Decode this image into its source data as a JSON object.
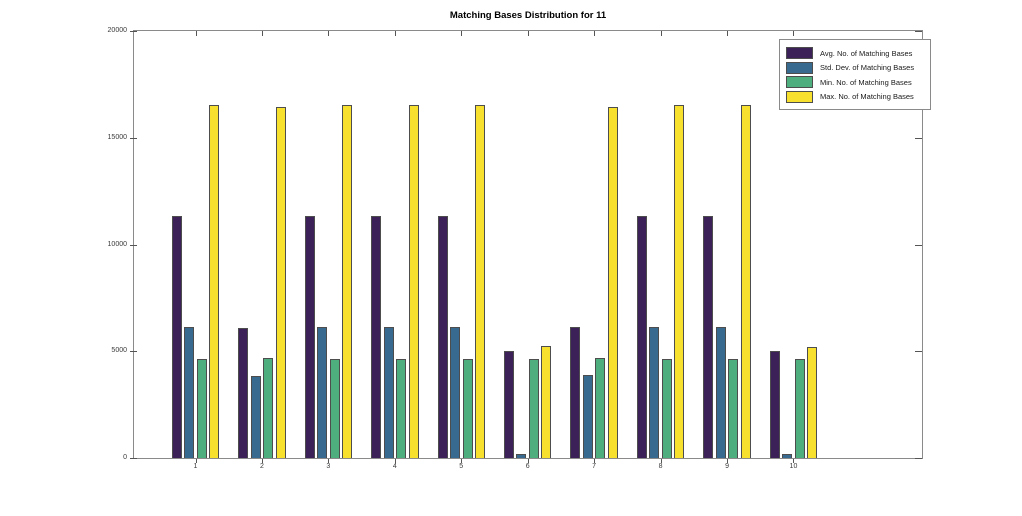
{
  "title": "Matching Bases Distribution for 11",
  "colors": {
    "avg": "#3c2159",
    "std": "#38698e",
    "min": "#4fae7d",
    "max": "#f7e02e",
    "bar_edge": "#4d4d4d",
    "axis": "#8a8a8a",
    "background": "#ffffff"
  },
  "chart_data": {
    "type": "bar",
    "title": "Matching Bases Distribution for 11",
    "xlabel": "",
    "ylabel": "",
    "categories": [
      "1",
      "2",
      "3",
      "4",
      "5",
      "6",
      "7",
      "8",
      "9",
      "10"
    ],
    "series": [
      {
        "name": "Avg. No. of Matching Bases",
        "color": "#3c2159",
        "values": [
          11300,
          6050,
          11300,
          11300,
          11300,
          4950,
          6100,
          11300,
          11300,
          4950
        ]
      },
      {
        "name": "Std. Dev. of Matching Bases",
        "color": "#38698e",
        "values": [
          6100,
          3800,
          6100,
          6100,
          6100,
          150,
          3850,
          6100,
          6100,
          150
        ]
      },
      {
        "name": "Min. No. of Matching Bases",
        "color": "#4fae7d",
        "values": [
          4600,
          4650,
          4600,
          4600,
          4600,
          4600,
          4650,
          4600,
          4600,
          4600
        ]
      },
      {
        "name": "Max. No. of Matching Bases",
        "color": "#f7e02e",
        "values": [
          16500,
          16400,
          16500,
          16500,
          16500,
          5200,
          16400,
          16500,
          16500,
          5150
        ]
      }
    ],
    "ylim": [
      0,
      20000
    ],
    "yticks": [
      0,
      5000,
      10000,
      15000,
      20000
    ],
    "ytick_labels": [
      "0",
      "5000",
      "10000",
      "15000",
      "20000"
    ],
    "grid": false,
    "legend_position": "northeast"
  }
}
